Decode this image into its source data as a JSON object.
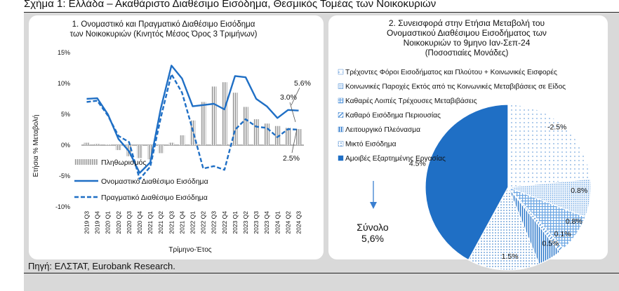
{
  "figure_title": "Σχήμα 1: Ελλάδα – Ακαθάριστο Διαθέσιμο Εισόδημα, Θεσμικός Τομέας των Νοικοκυριών",
  "source": "Πηγή: ΕΛΣΤΑΤ, Eurobank Research.",
  "colors": {
    "nominal": "#1f6fc5",
    "real": "#1f6fc5",
    "bars": "#9c9c9c",
    "panel_bg": "#d9d9d9"
  },
  "chart_data": [
    {
      "type": "line",
      "title_lines": [
        "1. Ονομαστικό και Πραγματικό Διαθέσιμο Εισόδημα",
        "των Νοικοκυριών (Κινητός Μέσος Όρος 3 Τριμήνων)"
      ],
      "xlabel": "Τρίμηνο-Έτος",
      "ylabel": "Ετήσια % Μεταβολή",
      "ylim": [
        -10,
        15
      ],
      "y_ticks": [
        "15%",
        "10%",
        "5%",
        "0%",
        "-5%",
        "-10%"
      ],
      "y_tick_values": [
        15,
        10,
        5,
        0,
        -5,
        -10
      ],
      "categories": [
        "2019 Q3",
        "2019 Q4",
        "2020 Q1",
        "2020 Q2",
        "2020 Q3",
        "2020 Q4",
        "2021 Q1",
        "2021 Q2",
        "2021 Q3",
        "2021 Q4",
        "2022 Q1",
        "2022 Q2",
        "2022 Q3",
        "2022 Q4",
        "2023 Q1",
        "2023 Q2",
        "2023 Q3",
        "2023 Q4",
        "2024 Q1",
        "2024 Q2",
        "2024 Q3"
      ],
      "series": [
        {
          "name": "Πληθωρισμός",
          "kind": "bar",
          "values": [
            0.4,
            0.2,
            0.1,
            -0.8,
            -1.8,
            -2.1,
            -2.3,
            -1.3,
            0.4,
            1.6,
            4.0,
            7.0,
            9.5,
            10.2,
            8.5,
            6.2,
            4.2,
            3.5,
            3.1,
            2.8,
            2.6
          ]
        },
        {
          "name": "Ονομαστικό Διαθέσιμο Εισόδημα",
          "kind": "line",
          "values": [
            7.5,
            7.6,
            5.0,
            1.0,
            -1.0,
            -4.5,
            -2.8,
            6.0,
            12.9,
            10.8,
            6.3,
            6.5,
            6.7,
            5.8,
            11.2,
            11.0,
            7.5,
            6.3,
            4.4,
            5.7,
            5.6
          ]
        },
        {
          "name": "Πραγματικό Διαθέσιμο Εισόδημα",
          "kind": "dashed-line",
          "values": [
            7.0,
            7.2,
            4.8,
            1.5,
            0.5,
            -5.5,
            -3.5,
            4.5,
            11.5,
            8.5,
            2.5,
            -3.8,
            -3.4,
            -4.0,
            2.5,
            4.2,
            3.0,
            2.8,
            1.3,
            2.6,
            2.5
          ]
        }
      ],
      "annotations": [
        "5.6%",
        "3.0%",
        "2.5%"
      ]
    },
    {
      "type": "pie",
      "title_lines": [
        "2. Συνεισφορά στην Ετήσια Μεταβολή του",
        "Ονομαστικού Διαθέσιμου Εισοδήματος των",
        "Νοικοκυριών το 9μηνο Ιαν-Σεπ-24",
        "(Ποσοστιαίες Μονάδες)"
      ],
      "legend": [
        "Τρέχοντες Φόροι Εισοδήματος και Πλούτου + Κοινωνικές Εισφορές",
        "Κοινωνικές Παροχές Εκτός από τις Κοινωνικές Μεταβιβάσεις σε Είδος",
        "Καθαρές Λοιπές Τρέχουσες Μεταβιβάσεις",
        "Καθαρό Εισόδημα Περιουσίας",
        "Λειτουργικό Πλεόνασμα",
        "Μικτό Εισόδημα",
        "Αμοιβές Εξαρτημένης Εργασίας"
      ],
      "slices": [
        {
          "name": "Αμοιβές Εξαρτημένης Εργασίας",
          "value": 4.5,
          "label": "4.5%"
        },
        {
          "name": "Μικτό Εισόδημα",
          "value": 1.5,
          "label": "1.5%"
        },
        {
          "name": "Λειτουργικό Πλεόνασμα",
          "value": 0.5,
          "label": "0.5%"
        },
        {
          "name": "Καθαρό Εισόδημα Περιουσίας",
          "value": 0.1,
          "label": "0.1%"
        },
        {
          "name": "Καθαρές Λοιπές Τρέχουσες Μεταβιβάσεις",
          "value": 0.8,
          "label": "0.8%"
        },
        {
          "name": "Κοινωνικές Παροχές Εκτός από τις Κοινωνικές Μεταβιβάσεις σε Είδος",
          "value": 0.8,
          "label": "0.8%"
        },
        {
          "name": "Τρέχοντες Φόροι Εισοδήματος και Πλούτου + Κοινωνικές Εισφορές",
          "value": -2.5,
          "label": "-2.5%"
        }
      ],
      "total_label": "Σύνολο",
      "total_value": "5,6%"
    }
  ]
}
